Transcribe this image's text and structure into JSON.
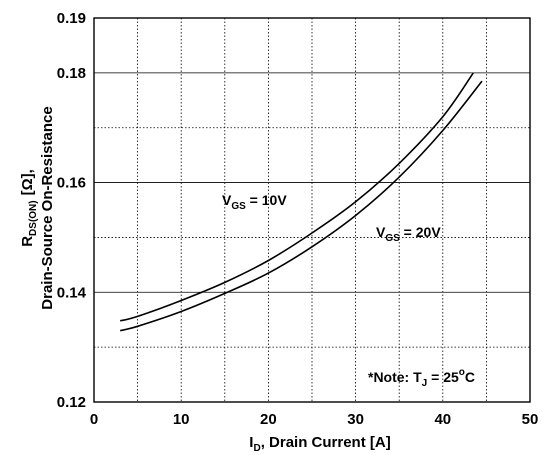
{
  "chart_data": {
    "type": "line",
    "ylabel_line1": "R",
    "ylabel_line1_sub": "DS(ON)",
    "ylabel_line1_unit": "[Ω],",
    "ylabel_line2": "Drain-Source On-Resistance",
    "xlabel_main": "I",
    "xlabel_sub": "D",
    "xlabel_rest": ", Drain Current [A]",
    "xlim": [
      0,
      50
    ],
    "ylim": [
      0.12,
      0.19
    ],
    "x_ticks": [
      0,
      10,
      20,
      30,
      40,
      50
    ],
    "x_tick_labels": [
      "0",
      "10",
      "20",
      "30",
      "40",
      "50"
    ],
    "y_ticks": [
      0.12,
      0.14,
      0.16,
      0.18,
      0.19
    ],
    "y_tick_labels": [
      "0.12",
      "0.14",
      "0.16",
      "0.18",
      "0.19"
    ],
    "grid": true,
    "series": [
      {
        "label_main": "V",
        "label_sub": "GS",
        "label_rest": " = 10V",
        "x": [
          3,
          5,
          10,
          15,
          20,
          25,
          30,
          35,
          40,
          43.5
        ],
        "y": [
          0.1348,
          0.1356,
          0.1385,
          0.1418,
          0.1458,
          0.1508,
          0.1565,
          0.1635,
          0.172,
          0.18
        ]
      },
      {
        "label_main": "V",
        "label_sub": "GS",
        "label_rest": " = 20V",
        "x": [
          3,
          5,
          10,
          15,
          20,
          25,
          30,
          35,
          40,
          44.5
        ],
        "y": [
          0.133,
          0.1338,
          0.1365,
          0.1398,
          0.1435,
          0.1483,
          0.154,
          0.161,
          0.1695,
          0.1785
        ]
      }
    ],
    "note_prefix": "*Note: T",
    "note_sub": "J",
    "note_mid": " = 25",
    "note_sup": "o",
    "note_suffix": "C"
  }
}
